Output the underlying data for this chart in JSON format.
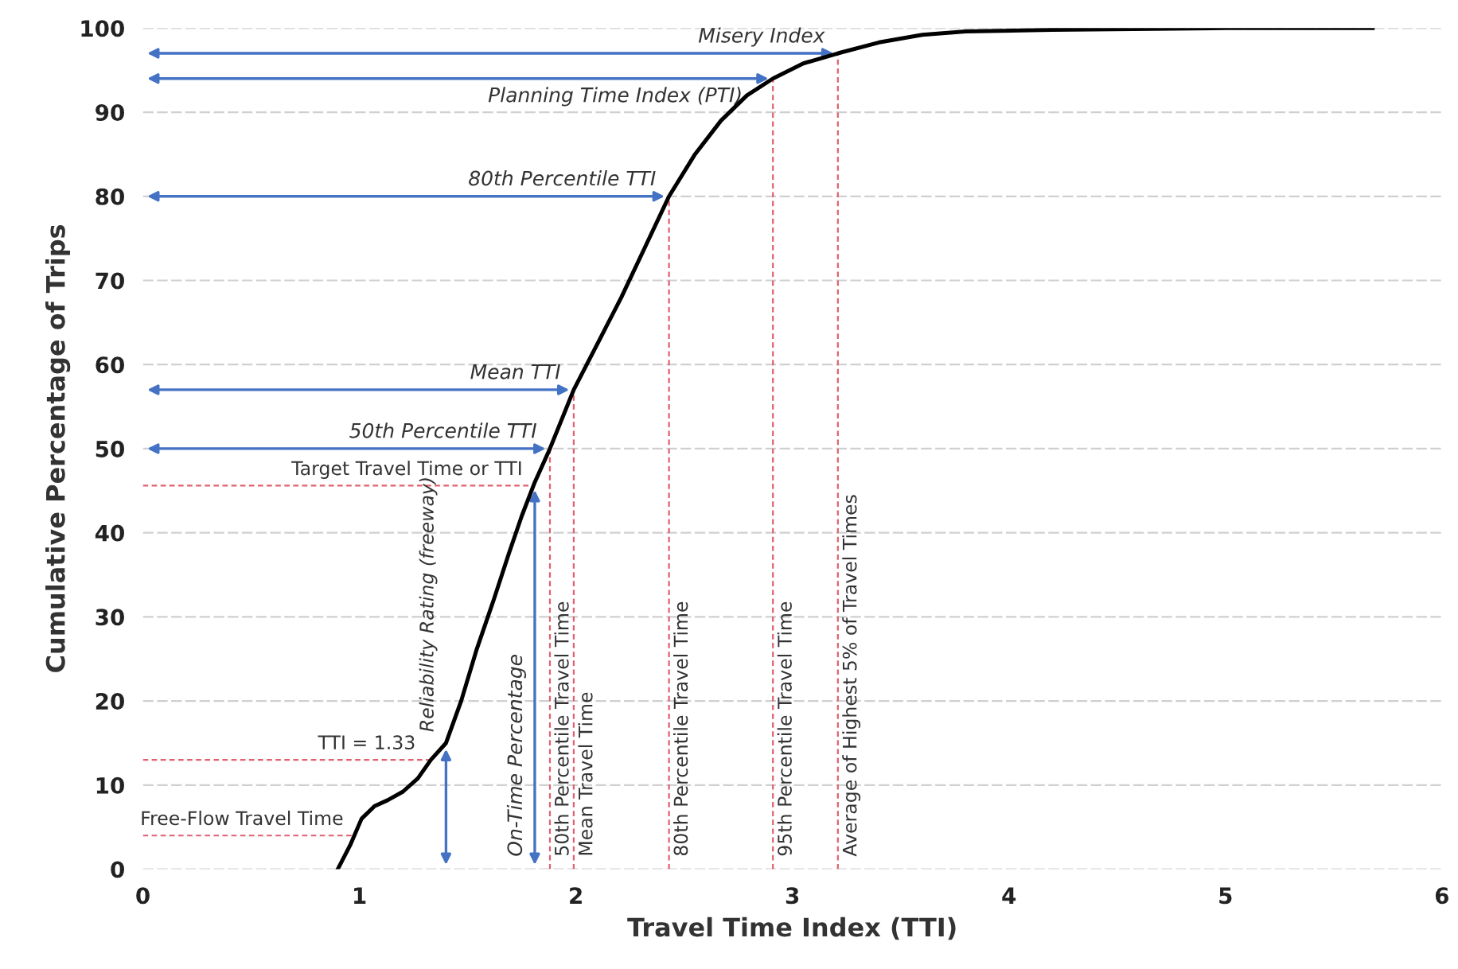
{
  "chart_data": {
    "type": "line",
    "xlabel": "Travel Time Index (TTI)",
    "ylabel": "Cumulative Percentage of Trips",
    "xlim": [
      0,
      6
    ],
    "ylim": [
      0,
      100
    ],
    "xticks": [
      0,
      1,
      2,
      3,
      4,
      5,
      6
    ],
    "yticks": [
      0,
      10,
      20,
      30,
      40,
      50,
      60,
      70,
      80,
      90,
      100
    ],
    "grid": "y",
    "series": [
      {
        "color": "#000000",
        "x": [
          0.9,
          0.96,
          1.01,
          1.07,
          1.13,
          1.2,
          1.27,
          1.33,
          1.4,
          1.47,
          1.54,
          1.62,
          1.69,
          1.75,
          1.81,
          1.88,
          1.99,
          2.1,
          2.21,
          2.32,
          2.43,
          2.55,
          2.67,
          2.79,
          2.91,
          3.05,
          3.21,
          3.4,
          3.6,
          3.8,
          4.2,
          5.0,
          5.68
        ],
        "values": [
          0,
          3,
          6,
          7.5,
          8.2,
          9.2,
          10.8,
          13,
          15,
          20,
          26,
          32,
          37.5,
          42,
          46,
          50,
          57,
          62.5,
          68,
          74,
          80,
          85,
          89,
          92,
          94,
          95.8,
          97,
          98.3,
          99.2,
          99.6,
          99.8,
          100,
          100
        ]
      }
    ],
    "ref_lines": [
      {
        "axis": "y",
        "value": 4,
        "label": "Free-Flow Travel Time",
        "color": "#e06070",
        "line_style": "dashed"
      },
      {
        "axis": "y",
        "value": 13,
        "color": "#e06070",
        "line_style": "dashed"
      },
      {
        "axis": "y",
        "value": 45.6,
        "label": "Target Travel Time or TTI",
        "color": "#e06070",
        "line_style": "dashed"
      },
      {
        "axis": "x",
        "value": 1.88,
        "label": "50th Percentile Travel Time",
        "color": "#e06070",
        "line_style": "dashed"
      },
      {
        "axis": "x",
        "value": 1.99,
        "label": "Mean Travel Time",
        "color": "#e06070",
        "line_style": "dashed"
      },
      {
        "axis": "x",
        "value": 2.43,
        "label": "80th Percentile Travel Time",
        "color": "#e06070",
        "line_style": "dashed"
      },
      {
        "axis": "x",
        "value": 2.91,
        "label": "95th Percentile Travel Time",
        "color": "#e06070",
        "line_style": "dashed"
      },
      {
        "axis": "x",
        "value": 3.21,
        "label": "Average of Highest 5% of Travel Times",
        "color": "#e06070",
        "line_style": "dashed"
      }
    ],
    "annotations": [
      {
        "text": "TTI = 1.33",
        "x": 1.33,
        "y": 13
      },
      {
        "text": "Misery Index",
        "x": 3.21,
        "y": 97
      },
      {
        "text": "Planning Time Index (PTI)",
        "x": 2.91,
        "y": 94
      },
      {
        "text": "80th Percentile TTI",
        "x": 2.43,
        "y": 80
      },
      {
        "text": "Mean TTI",
        "x": 1.99,
        "y": 57
      },
      {
        "text": "50th Percentile TTI",
        "x": 1.88,
        "y": 50
      },
      {
        "text": "Reliability Rating (freeway)",
        "x": 1.4,
        "y": 14.8
      },
      {
        "text": "On-Time Percentage",
        "x": 1.81,
        "y": 45.6
      }
    ]
  }
}
